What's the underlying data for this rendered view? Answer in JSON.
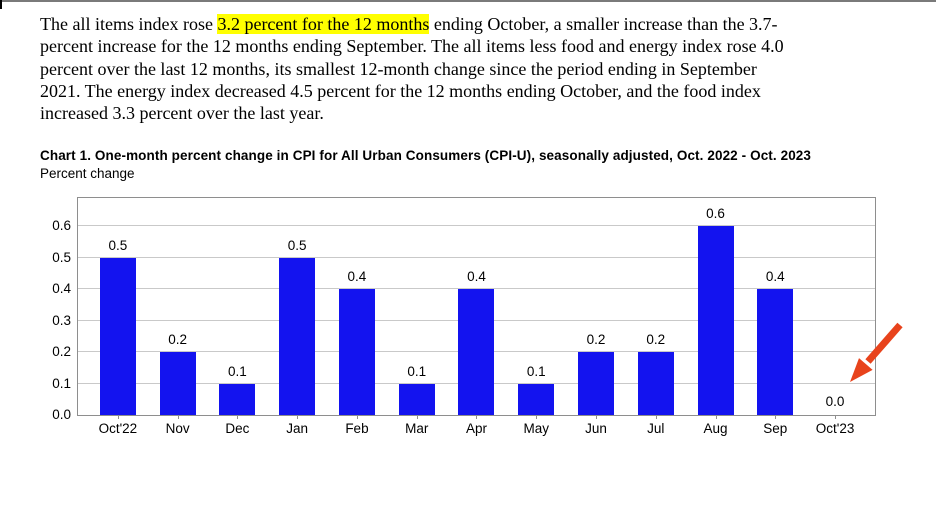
{
  "paragraph": {
    "lines": [
      [
        {
          "text": "The all items index rose ",
          "highlight": false
        },
        {
          "text": "3.2 percent for the 12 months",
          "highlight": true
        },
        {
          "text": " ending October, a smaller increase than the 3.7-",
          "highlight": false
        }
      ],
      [
        {
          "text": "percent increase for the 12 months ending September. The all items less food and energy index rose 4.0",
          "highlight": false
        }
      ],
      [
        {
          "text": "percent over the last 12 months, its smallest 12-month change since the period ending in September",
          "highlight": false
        }
      ],
      [
        {
          "text": "2021. The energy index decreased 4.5 percent for the 12 months ending October, and the food index",
          "highlight": false
        }
      ],
      [
        {
          "text": "increased 3.3 percent over the last year.",
          "highlight": false
        }
      ]
    ],
    "highlight_color": "#ffff00"
  },
  "chart_data": {
    "type": "bar",
    "title": "Chart 1. One-month percent change in CPI for All Urban Consumers (CPI-U), seasonally adjusted, Oct. 2022 - Oct. 2023",
    "ylabel": "Percent change",
    "xlabel": "",
    "categories": [
      "Oct'22",
      "Nov",
      "Dec",
      "Jan",
      "Feb",
      "Mar",
      "Apr",
      "May",
      "Jun",
      "Jul",
      "Aug",
      "Sep",
      "Oct'23"
    ],
    "values": [
      0.5,
      0.2,
      0.1,
      0.5,
      0.4,
      0.1,
      0.4,
      0.1,
      0.2,
      0.2,
      0.6,
      0.4,
      0.0
    ],
    "value_labels": [
      "0.5",
      "0.2",
      "0.1",
      "0.5",
      "0.4",
      "0.1",
      "0.4",
      "0.1",
      "0.2",
      "0.2",
      "0.6",
      "0.4",
      "0.0"
    ],
    "yticks": [
      0.0,
      0.1,
      0.2,
      0.3,
      0.4,
      0.5,
      0.6
    ],
    "ytick_labels": [
      "0.0",
      "0.1",
      "0.2",
      "0.3",
      "0.4",
      "0.5",
      "0.6"
    ],
    "ylim": [
      0,
      0.69
    ],
    "grid": true,
    "legend": false,
    "bar_color": "#1313ef",
    "gridline_color": "#c9c9c9",
    "annotation": {
      "type": "arrow",
      "target_category": "Oct'23",
      "color": "#e8431c"
    }
  }
}
